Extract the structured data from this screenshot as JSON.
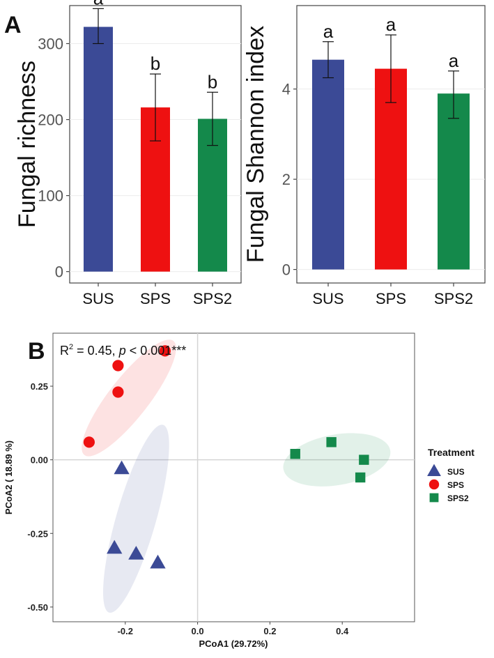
{
  "panel_labels": {
    "a": "A",
    "b": "B"
  },
  "colors": {
    "SUS": "#3b4a96",
    "SPS": "#ee1111",
    "SPS2": "#14894b"
  },
  "chart_data": [
    {
      "type": "bar",
      "ylabel": "Fungal richness",
      "categories": [
        "SUS",
        "SPS",
        "SPS2"
      ],
      "values": [
        322,
        216,
        201
      ],
      "error_low": [
        300,
        172,
        166
      ],
      "error_high": [
        346,
        260,
        236
      ],
      "significance_letters": [
        "a",
        "b",
        "b"
      ],
      "ylim": [
        -15,
        350
      ],
      "yticks": [
        0,
        100,
        200,
        300
      ],
      "ytick_labels": [
        "0",
        "100",
        "200",
        "300"
      ]
    },
    {
      "type": "bar",
      "ylabel": "Fungal Shannon index",
      "categories": [
        "SUS",
        "SPS",
        "SPS2"
      ],
      "values": [
        4.65,
        4.45,
        3.9
      ],
      "error_low": [
        4.25,
        3.7,
        3.35
      ],
      "error_high": [
        5.05,
        5.2,
        4.4
      ],
      "significance_letters": [
        "a",
        "a",
        "a"
      ],
      "ylim": [
        -0.3,
        5.85
      ],
      "yticks": [
        0,
        2,
        4
      ],
      "ytick_labels": [
        "0",
        "2",
        "4"
      ]
    },
    {
      "type": "scatter",
      "xlabel": "PCoA1 (29.72%)",
      "ylabel": "PCoA2 ( 18.89 %)",
      "annotation": {
        "prefix": "R",
        "sup": "2",
        "mid": " = 0.45, ",
        "italic": "p",
        "suffix": " < 0.001***"
      },
      "xlim": [
        -0.4,
        0.6
      ],
      "ylim": [
        -0.55,
        0.43
      ],
      "xticks": [
        -0.2,
        0.0,
        0.2,
        0.4
      ],
      "xtick_labels": [
        "-0.2",
        "0.0",
        "0.2",
        "0.4"
      ],
      "yticks": [
        -0.5,
        -0.25,
        0.0,
        0.25
      ],
      "ytick_labels": [
        "-0.50",
        "-0.25",
        "0.00",
        "0.25"
      ],
      "legend": {
        "title": "Treatment",
        "placement": "right"
      },
      "series": [
        {
          "name": "SUS",
          "marker": "triangle",
          "x": [
            -0.21,
            -0.23,
            -0.17,
            -0.11
          ],
          "y": [
            -0.03,
            -0.3,
            -0.32,
            -0.35
          ],
          "ellipse": {
            "cx": -0.17,
            "cy": -0.2,
            "rx": 0.27,
            "ry": 0.055,
            "angle_deg": -74
          }
        },
        {
          "name": "SPS",
          "marker": "circle",
          "x": [
            -0.22,
            -0.22,
            -0.09,
            -0.3
          ],
          "y": [
            0.32,
            0.23,
            0.37,
            0.06
          ],
          "ellipse": {
            "cx": -0.19,
            "cy": 0.21,
            "rx": 0.2,
            "ry": 0.055,
            "angle_deg": -52
          }
        },
        {
          "name": "SPS2",
          "marker": "square",
          "x": [
            0.27,
            0.37,
            0.46,
            0.45
          ],
          "y": [
            0.02,
            0.06,
            0.0,
            -0.06
          ],
          "ellipse": {
            "cx": 0.385,
            "cy": 0.0,
            "rx": 0.15,
            "ry": 0.07,
            "angle_deg": -10
          }
        }
      ]
    }
  ]
}
